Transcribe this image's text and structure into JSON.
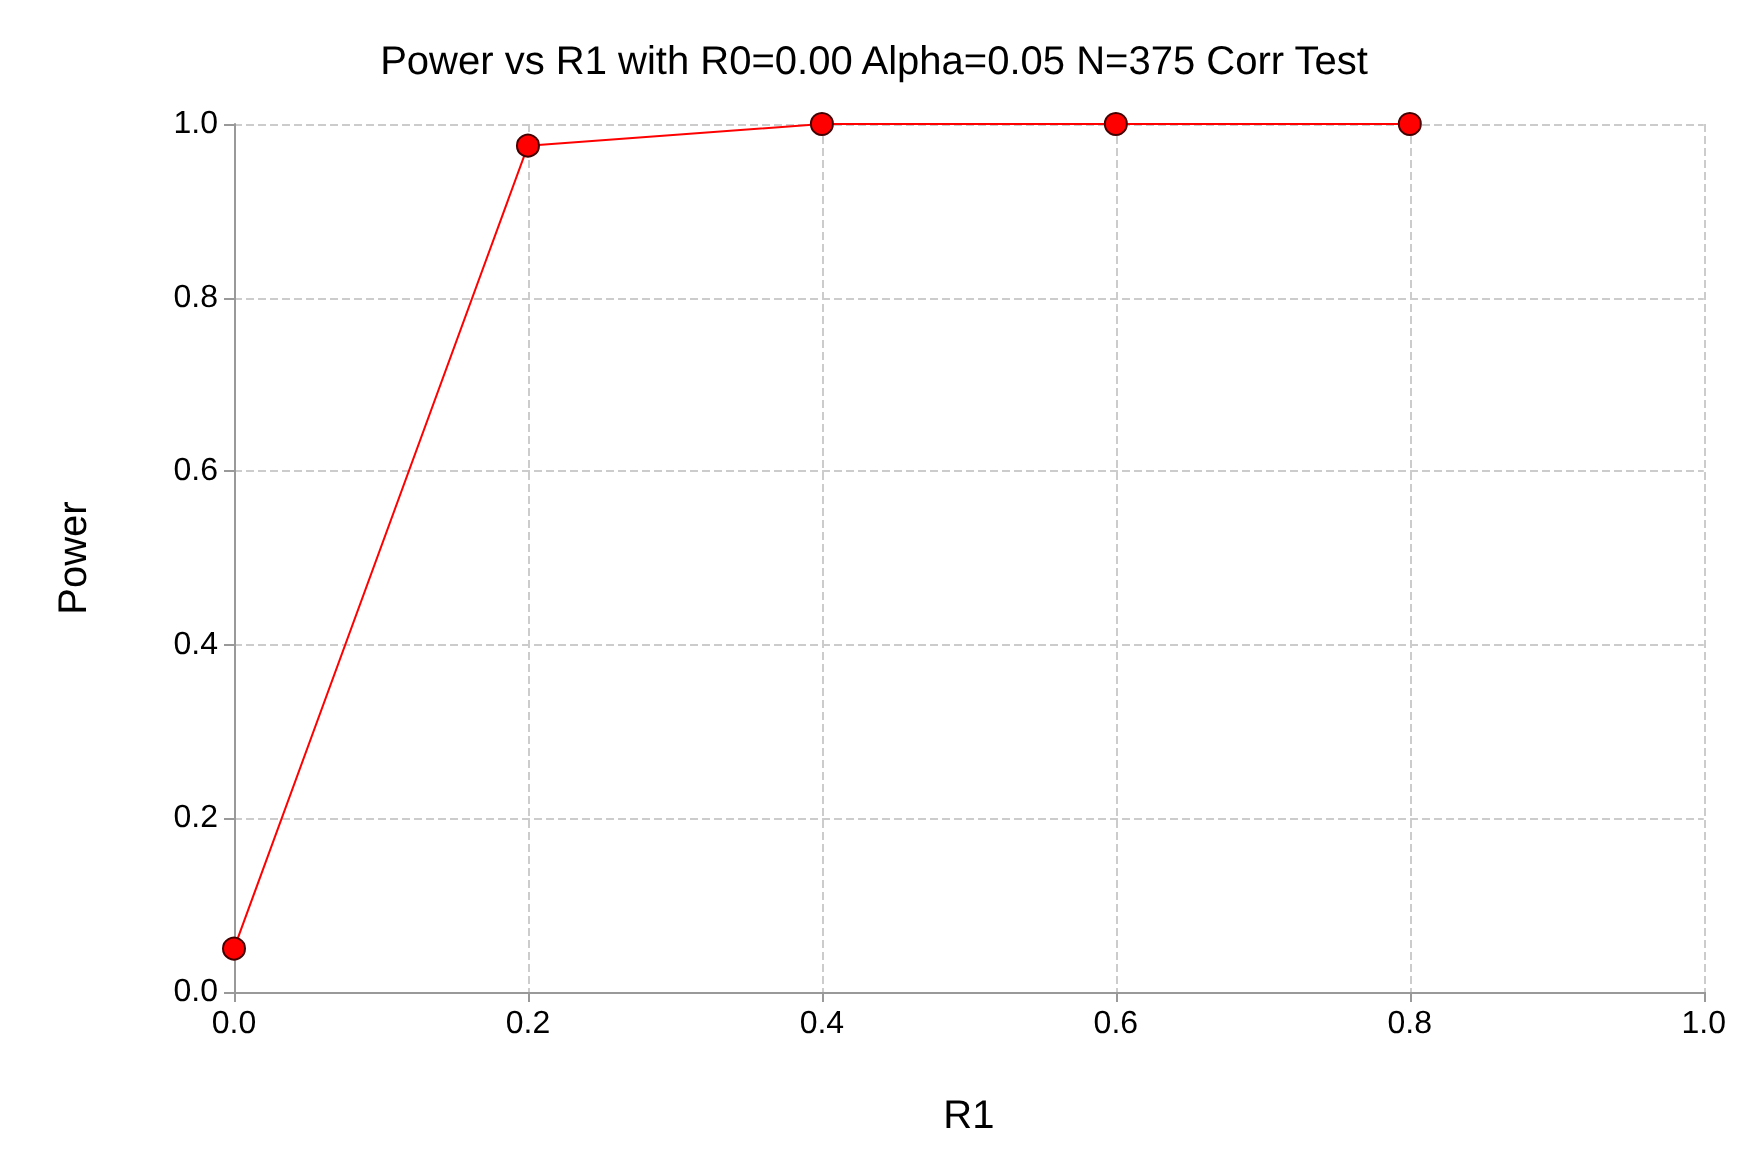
{
  "chart_data": {
    "type": "line",
    "title": "Power vs R1 with R0=0.00 Alpha=0.05 N=375 Corr Test",
    "xlabel": "R1",
    "ylabel": "Power",
    "x": [
      0,
      0.2,
      0.4,
      0.6,
      0.8
    ],
    "series": [
      {
        "color": "#ff0000",
        "values": [
          0.05,
          0.975,
          1.0,
          1.0,
          1.0
        ]
      }
    ],
    "xlim": [
      0,
      1
    ],
    "xticks": [
      {
        "value": 0,
        "label": "0.0"
      },
      0.2,
      0.4,
      0.6,
      0.8,
      {
        "value": 1,
        "label": "1.0"
      }
    ],
    "ylim": [
      0,
      1
    ],
    "yticks": [
      {
        "value": 0,
        "label": "0.0"
      },
      0.2,
      0.4,
      0.6,
      0.8,
      {
        "value": 1,
        "label": "1.0"
      }
    ],
    "grid": true,
    "marker": "circle",
    "line_style": "solid"
  }
}
